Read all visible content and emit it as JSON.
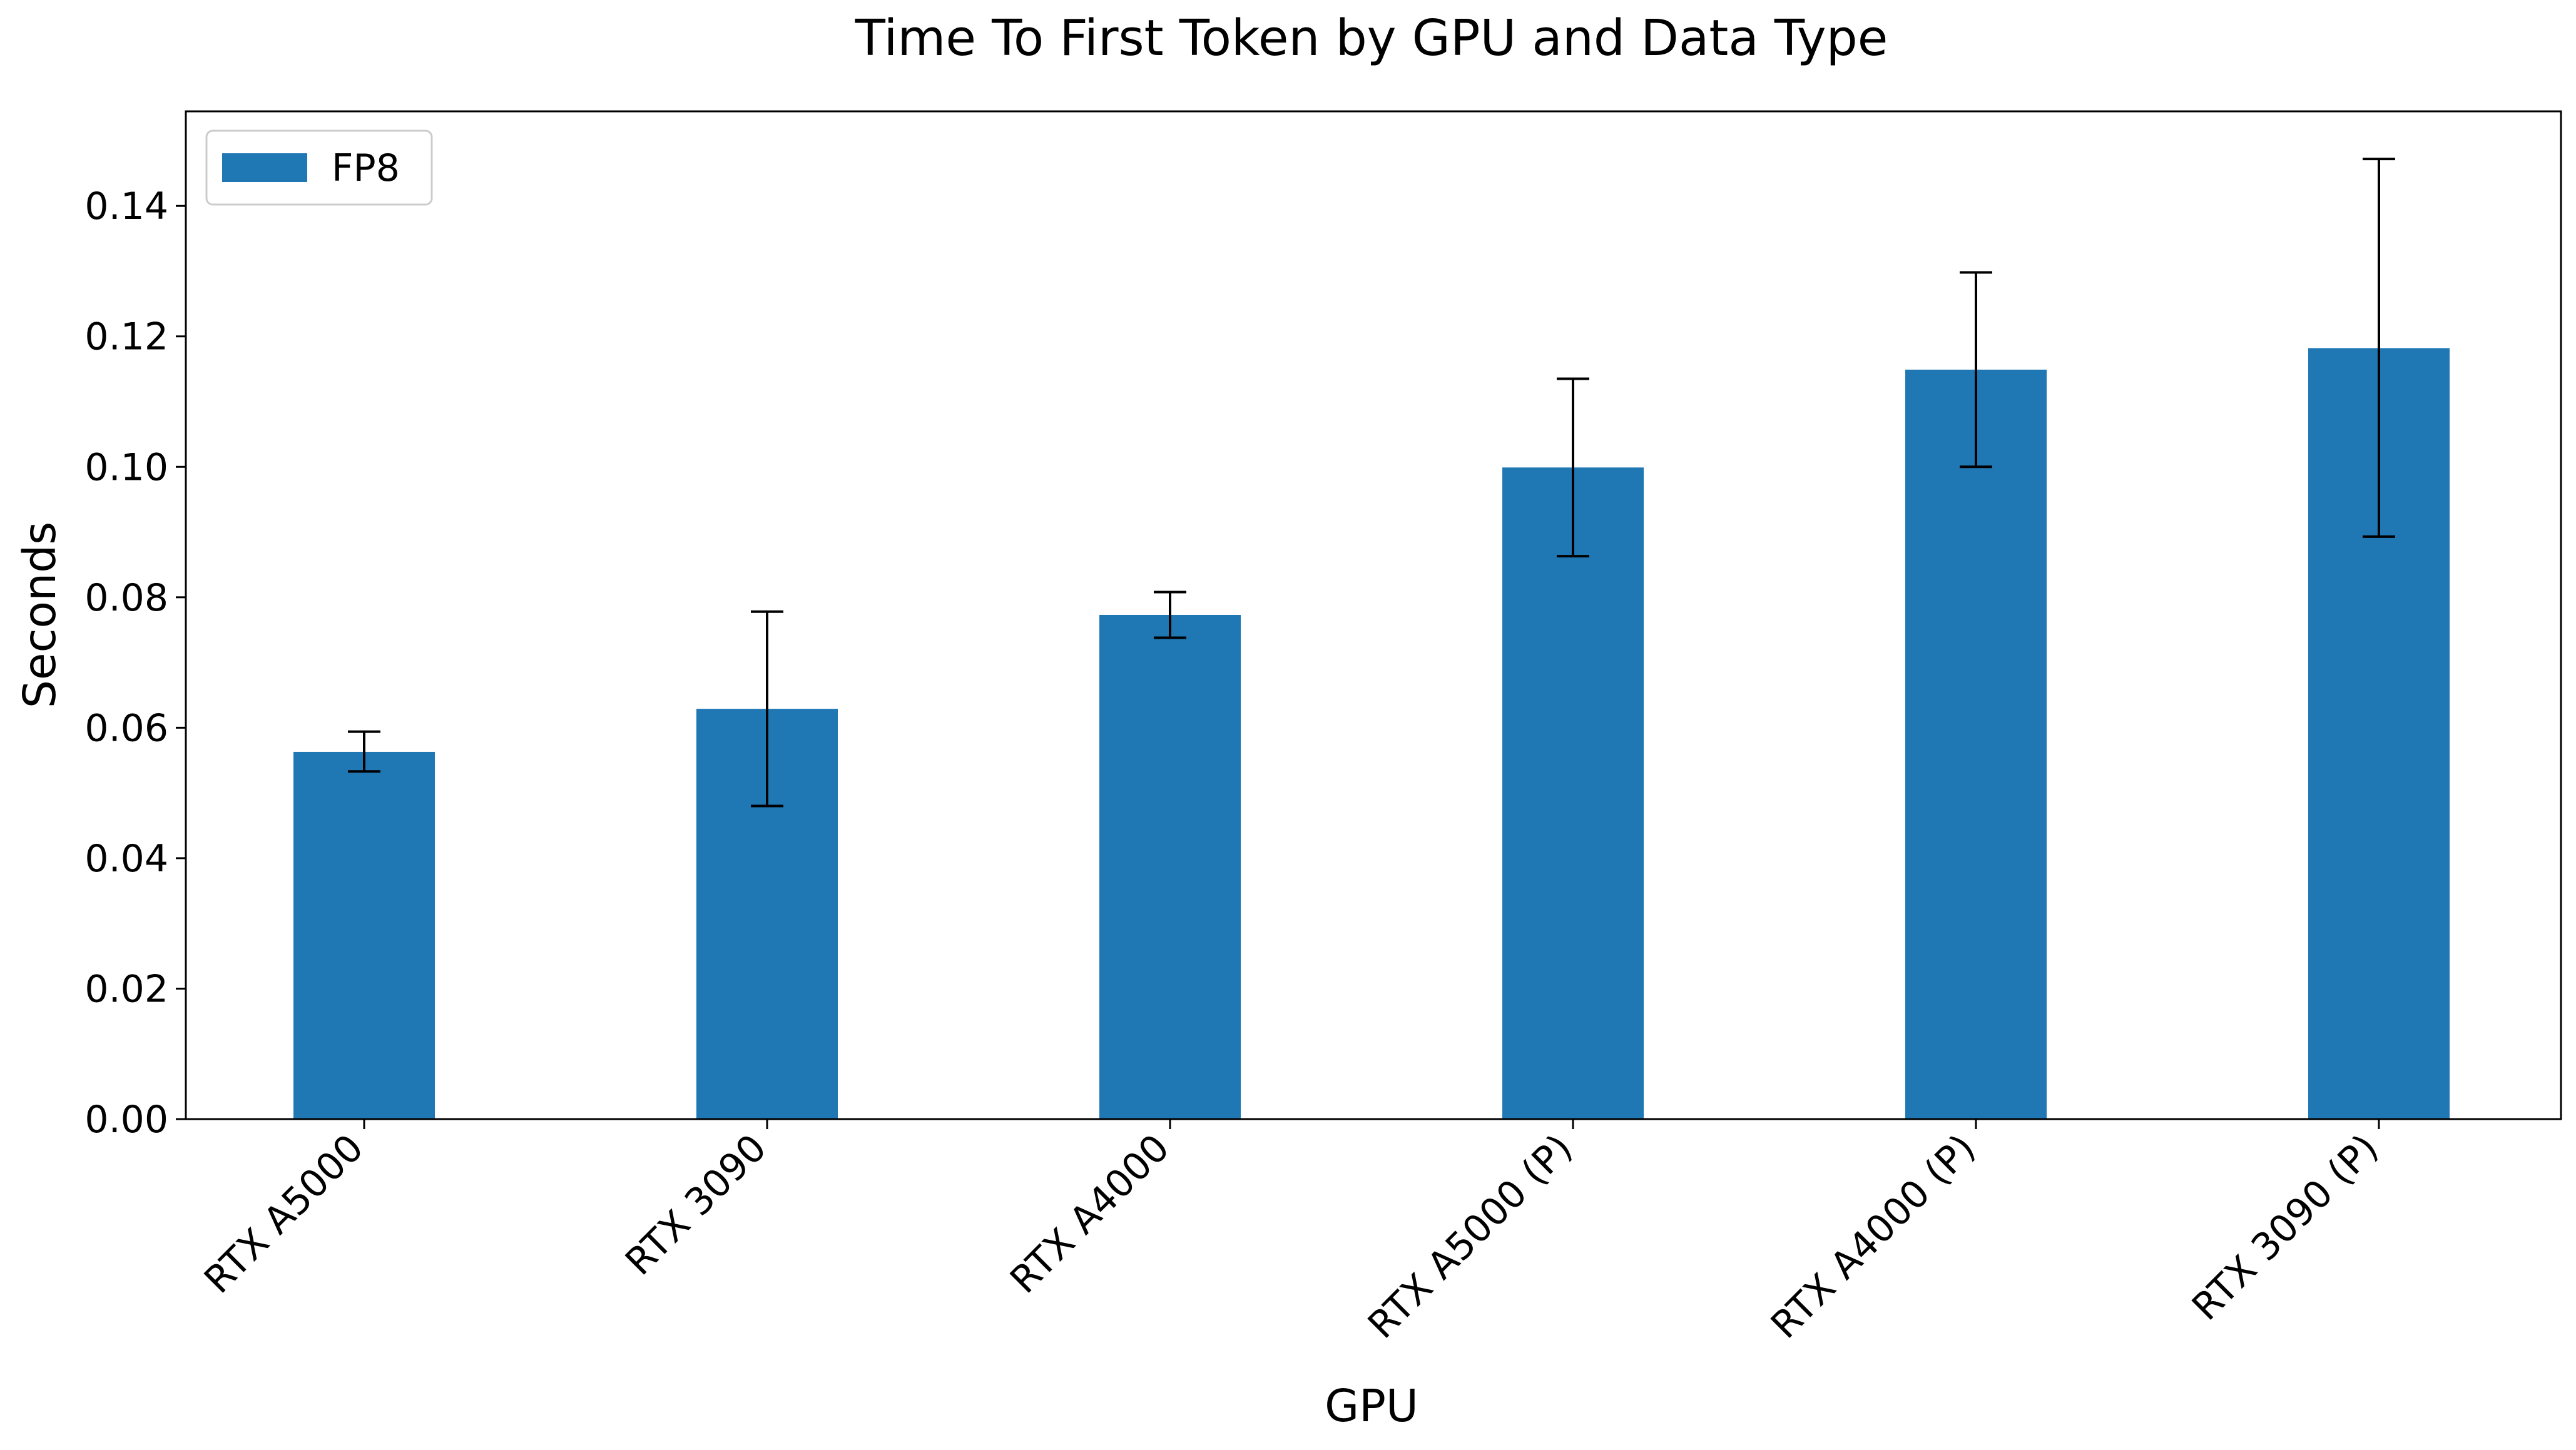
{
  "chart_data": {
    "type": "bar",
    "title": "Time To First Token by GPU and Data Type",
    "xlabel": "GPU",
    "ylabel": "Seconds",
    "categories": [
      "RTX A5000",
      "RTX 3090",
      "RTX A4000",
      "RTX A5000 (P)",
      "RTX A4000 (P)",
      "RTX 3090 (P)"
    ],
    "series": [
      {
        "name": "FP8",
        "color": "#1f77b4",
        "values": [
          0.0563,
          0.0629,
          0.0773,
          0.0999,
          0.1149,
          0.1182
        ],
        "error_low": [
          0.0533,
          0.048,
          0.0738,
          0.0863,
          0.1,
          0.0893
        ],
        "error_high": [
          0.0594,
          0.0778,
          0.0808,
          0.1135,
          0.1298,
          0.1472
        ]
      }
    ],
    "ylim": [
      0,
      0.1545
    ],
    "yticks": [
      "0.00",
      "0.02",
      "0.04",
      "0.06",
      "0.08",
      "0.10",
      "0.12",
      "0.14"
    ],
    "ytick_values": [
      0.0,
      0.02,
      0.04,
      0.06,
      0.08,
      0.1,
      0.12,
      0.14
    ],
    "grid": false,
    "legend_position": "top-left",
    "error_bar_color": "#000000"
  }
}
